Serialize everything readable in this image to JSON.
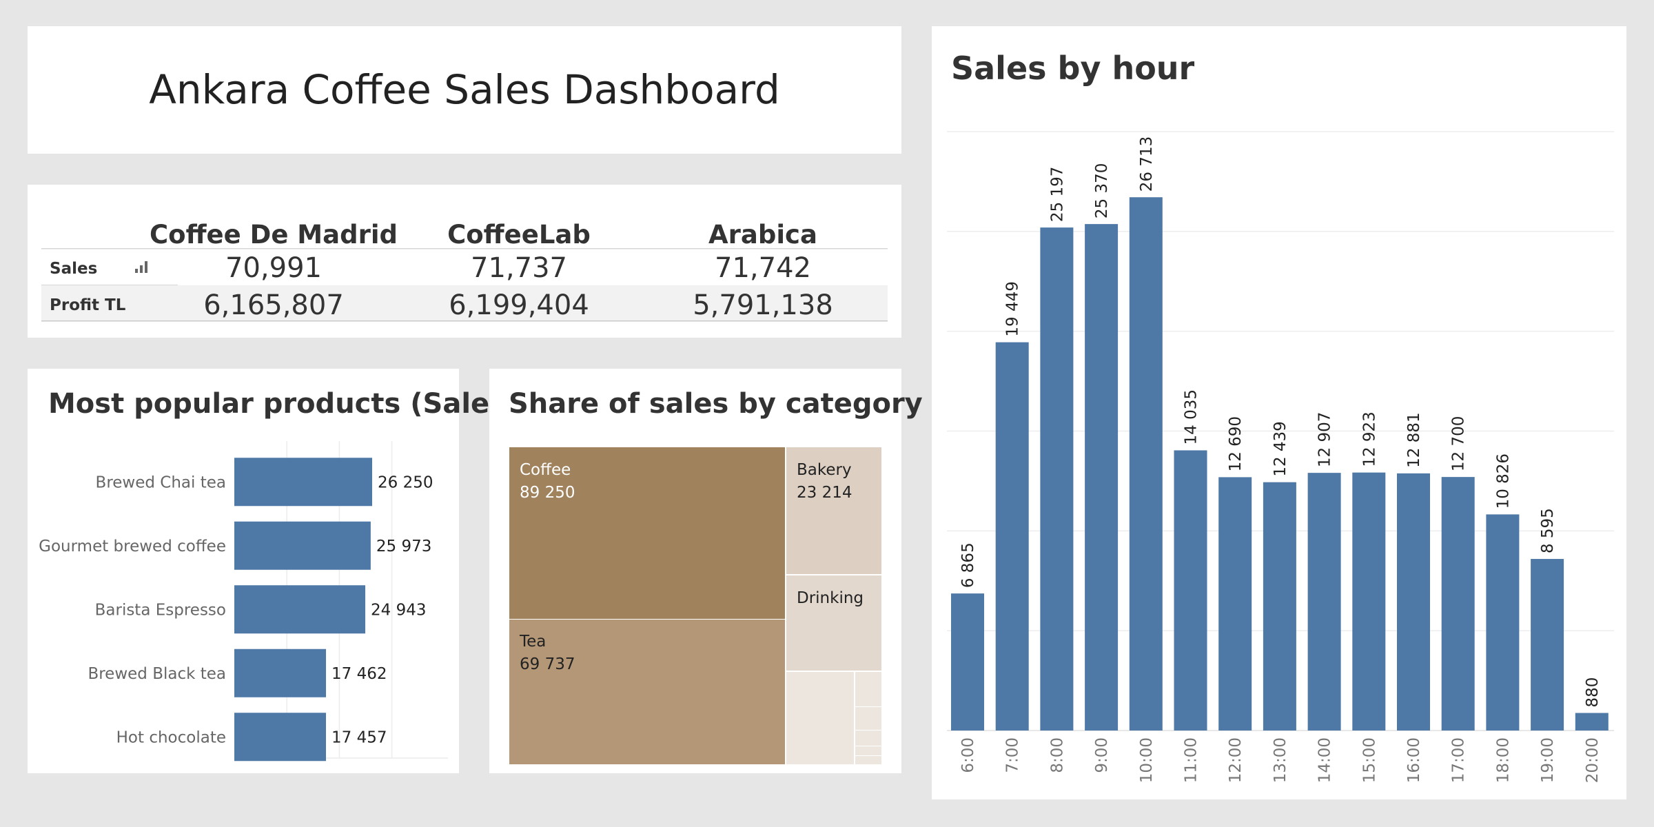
{
  "dashboard": {
    "title": "Ankara Coffee Sales Dashboard"
  },
  "colors": {
    "bar": "#4e79a7",
    "coffee": "#a0825c",
    "tea": "#b39777",
    "bakery": "#ddd0c3",
    "drinking": "#e2d8ce",
    "small_tiles": "#ece6df",
    "page_bg": "#e6e6e6"
  },
  "kpi_table": {
    "columns": [
      "Coffee De Madrid",
      "CoffeeLab",
      "Arabica"
    ],
    "rows": [
      {
        "label": "Sales",
        "values": [
          "70,991",
          "71,737",
          "71,742"
        ]
      },
      {
        "label": "Profit TL",
        "values": [
          "6,165,807",
          "6,199,404",
          "5,791,138"
        ]
      }
    ],
    "sort_icon": "bar-chart-sort-icon"
  },
  "chart_data": [
    {
      "type": "bar",
      "orientation": "horizontal",
      "title": "Most popular products (Sales)",
      "categories": [
        "Brewed Chai tea",
        "Gourmet brewed coffee",
        "Barista Espresso",
        "Brewed Black tea",
        "Hot chocolate"
      ],
      "values": [
        26250,
        25973,
        24943,
        17462,
        17457
      ],
      "value_labels": [
        "26 250",
        "25 973",
        "24 943",
        "17 462",
        "17 457"
      ],
      "xlim": [
        0,
        40000
      ],
      "grid": true
    },
    {
      "type": "treemap",
      "title": "Share of sales by category",
      "categories": [
        "Coffee",
        "Tea",
        "Bakery",
        "Drinking"
      ],
      "values": [
        89250,
        69737,
        23214,
        null
      ],
      "value_labels": [
        "89 250",
        "69 737",
        "23 214",
        ""
      ]
    },
    {
      "type": "bar",
      "orientation": "vertical",
      "title": "Sales by hour",
      "categories": [
        "6:00",
        "7:00",
        "8:00",
        "9:00",
        "10:00",
        "11:00",
        "12:00",
        "13:00",
        "14:00",
        "15:00",
        "16:00",
        "17:00",
        "18:00",
        "19:00",
        "20:00"
      ],
      "values": [
        6865,
        19449,
        25197,
        25370,
        26713,
        14035,
        12690,
        12439,
        12907,
        12923,
        12881,
        12700,
        10826,
        8595,
        880
      ],
      "value_labels": [
        "6 865",
        "19 449",
        "25 197",
        "25 370",
        "26 713",
        "14 035",
        "12 690",
        "12 439",
        "12 907",
        "12 923",
        "12 881",
        "12 700",
        "10 826",
        "8 595",
        "880"
      ],
      "ylim": [
        0,
        30000
      ],
      "grid": true
    }
  ]
}
